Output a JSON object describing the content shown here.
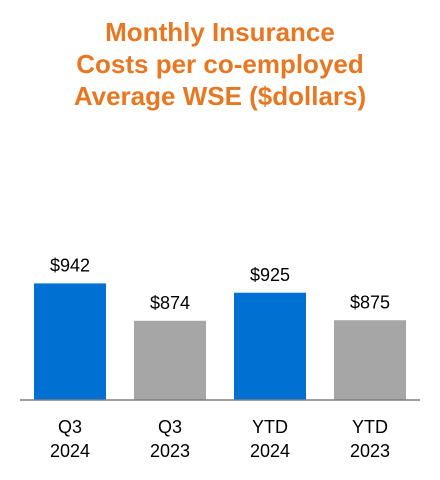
{
  "chart_data": {
    "type": "bar",
    "title_lines": [
      "Monthly Insurance",
      "Costs per co-employed",
      "Average WSE ($dollars)"
    ],
    "categories": [
      {
        "line1": "Q3",
        "line2": "2024"
      },
      {
        "line1": "Q3",
        "line2": "2023"
      },
      {
        "line1": "YTD",
        "line2": "2024"
      },
      {
        "line1": "YTD",
        "line2": "2023"
      }
    ],
    "values": [
      942,
      874,
      925,
      875
    ],
    "value_labels": [
      "$942",
      "$874",
      "$925",
      "$875"
    ],
    "bar_colors": [
      "#0070d2",
      "#a6a6a6",
      "#0070d2",
      "#a6a6a6"
    ],
    "title_color": "#e87722",
    "axis_color": "#7f7f7f",
    "xlabel": "",
    "ylabel": "",
    "grid": false,
    "legend": "none"
  }
}
